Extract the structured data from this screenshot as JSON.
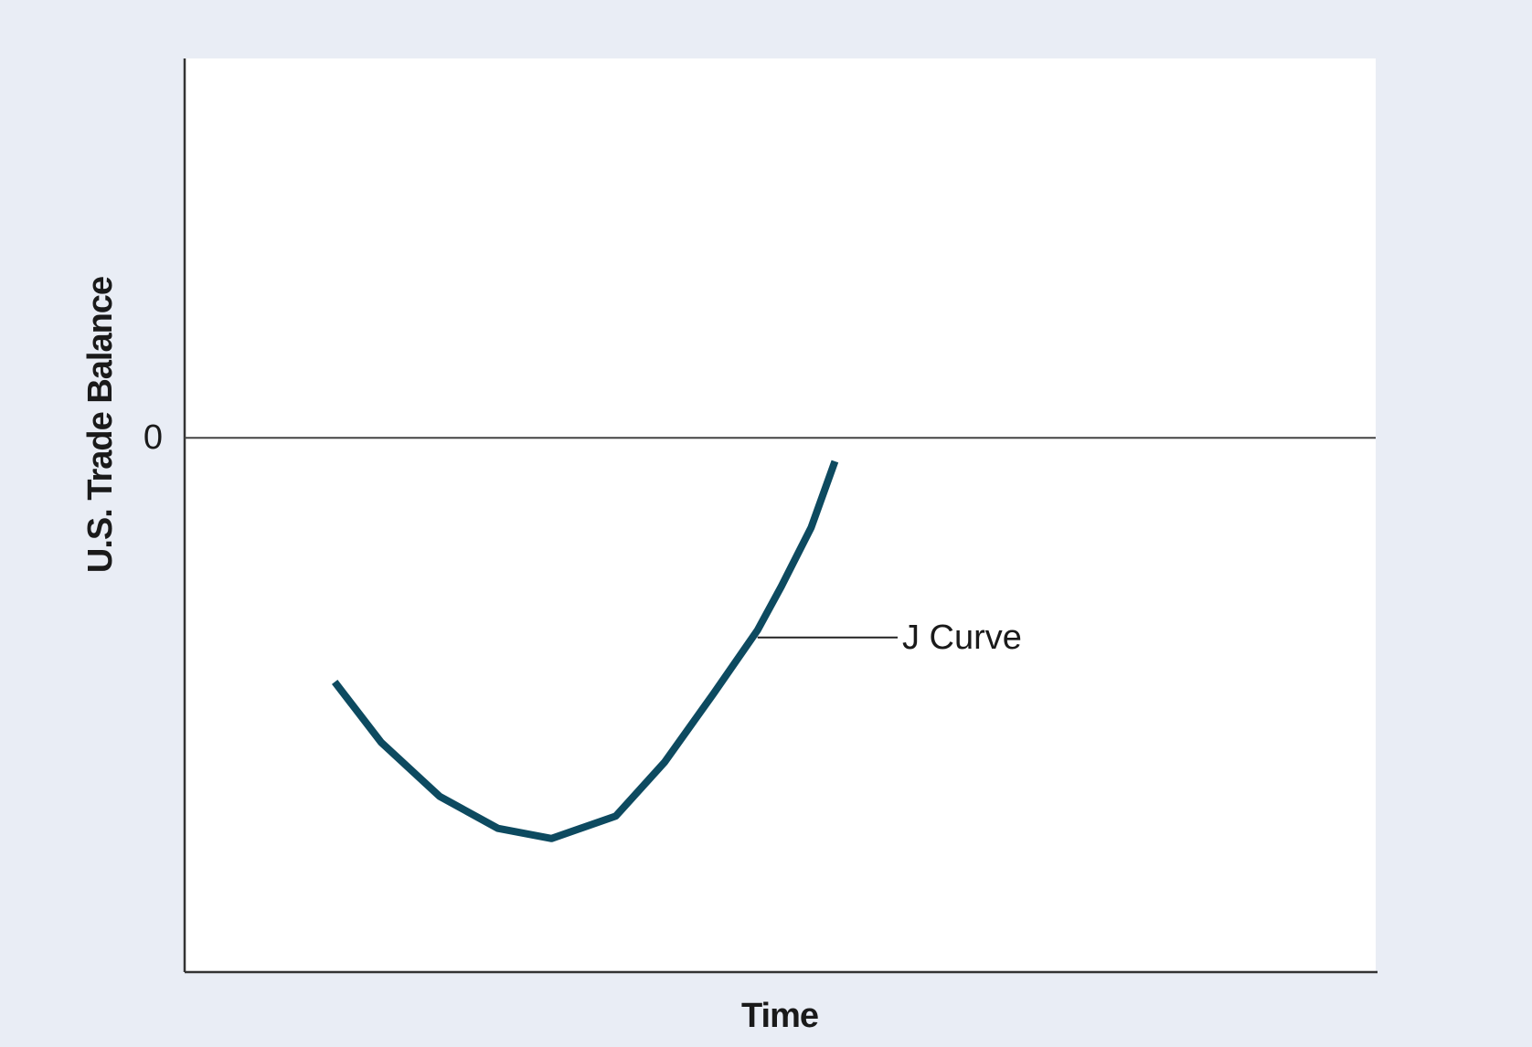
{
  "chart_data": {
    "type": "line",
    "x_label": "Time",
    "y_label": "U.S.  Trade Balance",
    "annotation": "J Curve",
    "x": [
      1.26,
      1.65,
      2.14,
      2.63,
      3.08,
      3.62,
      4.03,
      4.44,
      4.81,
      5.01,
      5.26,
      5.46
    ],
    "series": [
      {
        "name": "J Curve",
        "color": "#0d4a60",
        "values": [
          -4.57,
          -5.7,
          -6.71,
          -7.31,
          -7.5,
          -7.08,
          -6.07,
          -4.79,
          -3.6,
          -2.78,
          -1.68,
          -0.44
        ]
      }
    ],
    "xlim": [
      0,
      10
    ],
    "ylim": [
      -10,
      7.1
    ],
    "yticks": [
      0
    ],
    "grid": true
  }
}
